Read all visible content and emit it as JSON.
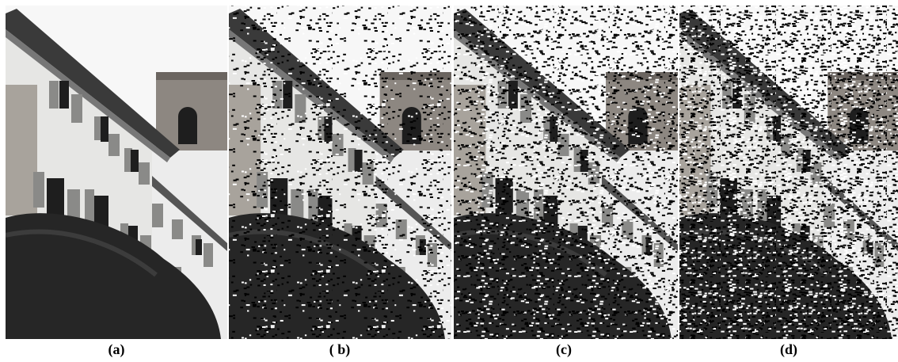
{
  "labels": [
    "(a)",
    "( b)",
    "(c)",
    "(d)"
  ]
}
